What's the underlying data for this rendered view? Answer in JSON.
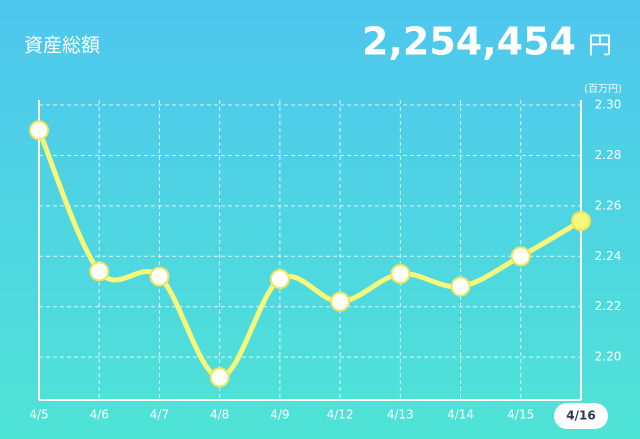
{
  "chart_data": {
    "type": "line",
    "title": "資産総額",
    "total": {
      "value": 2254454,
      "label": "2,254,454"
    },
    "total_unit": "円",
    "y_unit": "(百万円)",
    "categories": [
      "4/5",
      "4/6",
      "4/7",
      "4/8",
      "4/9",
      "4/12",
      "4/13",
      "4/14",
      "4/15",
      "4/16"
    ],
    "series": [
      {
        "name": "資産総額",
        "color": "#f7f77a",
        "values": [
          2.29,
          2.234,
          2.232,
          2.192,
          2.231,
          2.222,
          2.233,
          2.228,
          2.24,
          2.254
        ]
      }
    ],
    "ylim": [
      2.183,
      2.302
    ],
    "yticks": [
      {
        "value": 2.2,
        "label": "2.20"
      },
      {
        "value": 2.22,
        "label": "2.22"
      },
      {
        "value": 2.24,
        "label": "2.24"
      },
      {
        "value": 2.26,
        "label": "2.26"
      },
      {
        "value": 2.28,
        "label": "2.28"
      },
      {
        "value": 2.3,
        "label": "2.30"
      }
    ],
    "grid": true,
    "highlight": 9
  }
}
